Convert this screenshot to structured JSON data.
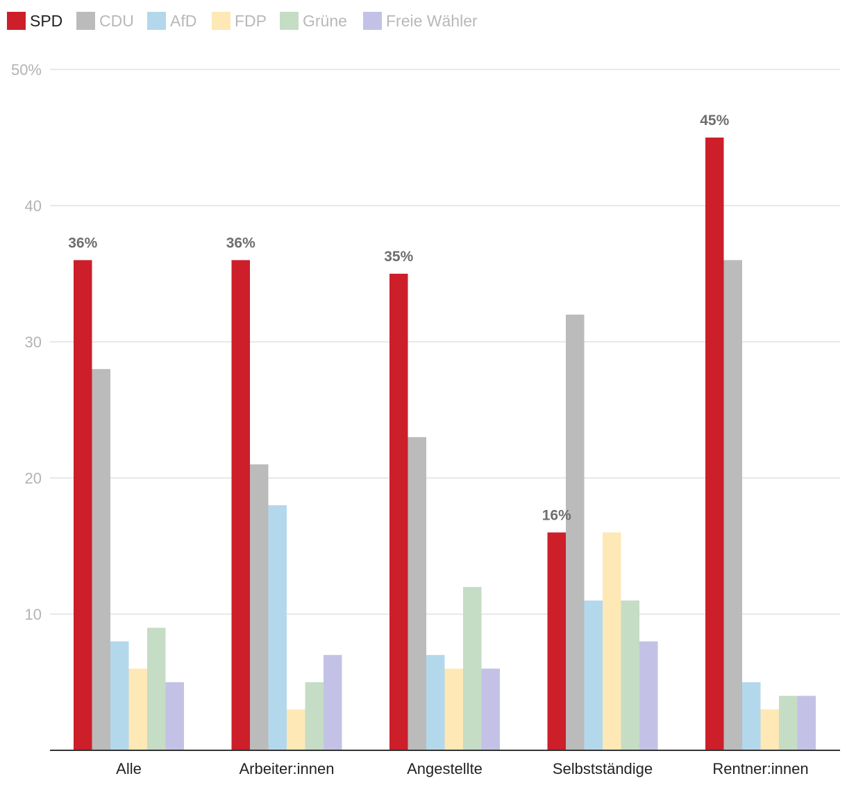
{
  "chart_data": {
    "type": "bar",
    "title": "",
    "xlabel": "",
    "ylabel": "",
    "y_unit_suffix": "%",
    "ylim": [
      0,
      50
    ],
    "yticks": [
      10,
      20,
      30,
      40,
      50
    ],
    "ytick_labels": [
      "10",
      "20",
      "30",
      "40",
      "50%"
    ],
    "grid": true,
    "legend_position": "top-left",
    "categories": [
      "Alle",
      "Arbeiter:innen",
      "Angestellte",
      "Selbstständige",
      "Rentner:innen"
    ],
    "series": [
      {
        "name": "SPD",
        "color": "#cc1f2a",
        "legend_active": true,
        "values": [
          36,
          36,
          35,
          16,
          45
        ]
      },
      {
        "name": "CDU",
        "color": "#bbbbbb",
        "legend_active": false,
        "values": [
          28,
          21,
          23,
          32,
          36
        ]
      },
      {
        "name": "AfD",
        "color": "#b3d8ec",
        "legend_active": false,
        "values": [
          8,
          18,
          7,
          11,
          5
        ]
      },
      {
        "name": "FDP",
        "color": "#fde8b6",
        "legend_active": false,
        "values": [
          6,
          3,
          6,
          16,
          3
        ]
      },
      {
        "name": "Grüne",
        "color": "#c5dcc5",
        "legend_active": false,
        "values": [
          9,
          5,
          12,
          11,
          4
        ]
      },
      {
        "name": "Freie Wähler",
        "color": "#c3c2e6",
        "legend_active": false,
        "values": [
          5,
          7,
          6,
          8,
          4
        ]
      }
    ],
    "data_labels": [
      {
        "series": "SPD",
        "category": "Alle",
        "text": "36%"
      },
      {
        "series": "SPD",
        "category": "Arbeiter:innen",
        "text": "36%"
      },
      {
        "series": "SPD",
        "category": "Angestellte",
        "text": "35%"
      },
      {
        "series": "SPD",
        "category": "Selbstständige",
        "text": "16%"
      },
      {
        "series": "SPD",
        "category": "Rentner:innen",
        "text": "45%"
      }
    ]
  },
  "colors": {
    "legend_active_text": "#222222",
    "legend_inactive_text": "#b8b8b8",
    "gridline": "#e0e0e0",
    "axis": "#333333"
  }
}
